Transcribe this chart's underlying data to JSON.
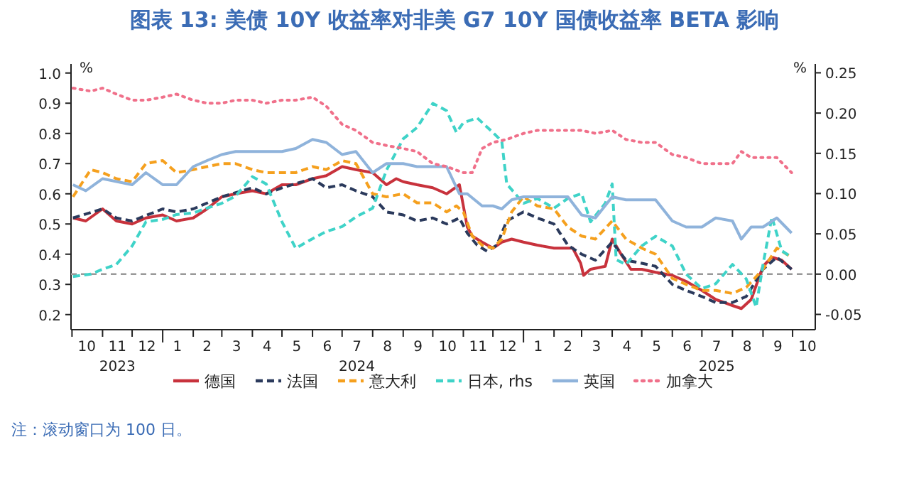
{
  "chart_data": {
    "type": "line",
    "title": "图表 13: 美债 10Y 收益率对非美 G7 10Y 国债收益率 BETA 影响",
    "ylabel": "%",
    "y2label": "%",
    "xlim": [
      "2023-09-30",
      "2025-10-24"
    ],
    "ylim": [
      0.15,
      1.03
    ],
    "yticks": [
      0.2,
      0.3,
      0.4,
      0.5,
      0.6,
      0.7,
      0.8,
      0.9,
      {
        "value": 1,
        "label": "1.0"
      }
    ],
    "y2lim": [
      -0.069,
      0.261
    ],
    "y2ticks": [
      {
        "value": -0.05,
        "label": "-0.05"
      },
      {
        "value": 0,
        "label": "0.00"
      },
      {
        "value": 0.05,
        "label": "0.05"
      },
      {
        "value": 0.1,
        "label": "0.10"
      },
      {
        "value": 0.15,
        "label": "0.15"
      },
      {
        "value": 0.2,
        "label": "0.20"
      },
      {
        "value": 0.25,
        "label": "0.25"
      }
    ],
    "xticks": [
      {
        "value": "2023-10-16",
        "label": "10"
      },
      {
        "value": "2023-11-16",
        "label": "11\n2023"
      },
      {
        "value": "2023-12-16",
        "label": "12"
      },
      {
        "value": "2024-01-16",
        "label": "1"
      },
      {
        "value": "2024-02-15",
        "label": "2"
      },
      {
        "value": "2024-03-16",
        "label": "3"
      },
      {
        "value": "2024-04-16",
        "label": "4"
      },
      {
        "value": "2024-05-16",
        "label": "5"
      },
      {
        "value": "2024-06-16",
        "label": "6"
      },
      {
        "value": "2024-07-16",
        "label": "7\n2024"
      },
      {
        "value": "2024-08-16",
        "label": "8"
      },
      {
        "value": "2024-09-16",
        "label": "9"
      },
      {
        "value": "2024-10-16",
        "label": "10"
      },
      {
        "value": "2024-11-16",
        "label": "11"
      },
      {
        "value": "2024-12-16",
        "label": "12"
      },
      {
        "value": "2025-01-16",
        "label": "1"
      },
      {
        "value": "2025-02-15",
        "label": "2"
      },
      {
        "value": "2025-03-16",
        "label": "3"
      },
      {
        "value": "2025-04-16",
        "label": "4"
      },
      {
        "value": "2025-05-16",
        "label": "5"
      },
      {
        "value": "2025-06-16",
        "label": "6"
      },
      {
        "value": "2025-07-16",
        "label": "7\n2025"
      },
      {
        "value": "2025-08-16",
        "label": "8"
      },
      {
        "value": "2025-09-16",
        "label": "9"
      },
      {
        "value": "2025-10-16",
        "label": "10"
      }
    ],
    "grid": false,
    "legend": "bottom",
    "ref_lines": [
      {
        "axis": "y2",
        "value": 0,
        "label": null,
        "color": "#999999",
        "line_style": "dashed"
      }
    ],
    "annotations": [
      "注：滚动窗口为 100 日。"
    ],
    "series": [
      {
        "name": "德国",
        "color": "#c8323c",
        "line_style": "solid",
        "x": [
          "2023-10-02",
          "2023-10-15",
          "2023-11-01",
          "2023-11-15",
          "2023-12-01",
          "2023-12-15",
          "2024-01-01",
          "2024-01-15",
          "2024-02-01",
          "2024-02-15",
          "2024-03-01",
          "2024-03-15",
          "2024-04-01",
          "2024-04-15",
          "2024-05-01",
          "2024-05-15",
          "2024-06-01",
          "2024-06-15",
          "2024-07-01",
          "2024-07-15",
          "2024-08-01",
          "2024-08-15",
          "2024-08-25",
          "2024-09-01",
          "2024-09-15",
          "2024-10-01",
          "2024-10-15",
          "2024-10-28",
          "2024-11-05",
          "2024-11-10",
          "2024-11-20",
          "2024-12-01",
          "2024-12-10",
          "2024-12-20",
          "2025-01-01",
          "2025-01-15",
          "2025-02-01",
          "2025-02-20",
          "2025-02-28",
          "2025-03-03",
          "2025-03-10",
          "2025-03-25",
          "2025-04-01",
          "2025-04-10",
          "2025-04-20",
          "2025-05-01",
          "2025-05-15",
          "2025-06-01",
          "2025-06-15",
          "2025-07-01",
          "2025-07-15",
          "2025-08-01",
          "2025-08-10",
          "2025-08-20",
          "2025-09-01",
          "2025-09-10",
          "2025-09-20",
          "2025-09-30"
        ],
        "values": [
          0.52,
          0.51,
          0.55,
          0.51,
          0.5,
          0.52,
          0.53,
          0.51,
          0.52,
          0.55,
          0.59,
          0.6,
          0.61,
          0.6,
          0.63,
          0.63,
          0.65,
          0.66,
          0.69,
          0.68,
          0.67,
          0.63,
          0.65,
          0.64,
          0.63,
          0.62,
          0.6,
          0.63,
          0.49,
          0.46,
          0.44,
          0.42,
          0.44,
          0.45,
          0.44,
          0.43,
          0.42,
          0.42,
          0.37,
          0.33,
          0.35,
          0.36,
          0.45,
          0.4,
          0.35,
          0.35,
          0.34,
          0.33,
          0.31,
          0.28,
          0.25,
          0.23,
          0.22,
          0.25,
          0.36,
          0.39,
          0.38,
          0.35
        ]
      },
      {
        "name": "法国",
        "color": "#2b3a5c",
        "line_style": "dashed",
        "x": [
          "2023-10-02",
          "2023-11-01",
          "2023-11-15",
          "2023-12-01",
          "2024-01-01",
          "2024-01-15",
          "2024-02-01",
          "2024-03-01",
          "2024-04-01",
          "2024-04-15",
          "2024-05-01",
          "2024-06-01",
          "2024-06-15",
          "2024-07-01",
          "2024-07-15",
          "2024-08-01",
          "2024-08-15",
          "2024-09-01",
          "2024-09-15",
          "2024-10-01",
          "2024-10-15",
          "2024-10-28",
          "2024-11-05",
          "2024-11-15",
          "2024-11-25",
          "2024-12-05",
          "2024-12-15",
          "2025-01-01",
          "2025-01-15",
          "2025-02-01",
          "2025-02-15",
          "2025-03-01",
          "2025-03-15",
          "2025-04-01",
          "2025-04-15",
          "2025-05-01",
          "2025-05-15",
          "2025-06-01",
          "2025-06-15",
          "2025-07-01",
          "2025-07-15",
          "2025-08-01",
          "2025-08-15",
          "2025-09-01",
          "2025-09-15",
          "2025-09-30"
        ],
        "values": [
          0.52,
          0.55,
          0.52,
          0.51,
          0.55,
          0.54,
          0.55,
          0.59,
          0.62,
          0.6,
          0.62,
          0.65,
          0.62,
          0.63,
          0.61,
          0.59,
          0.54,
          0.53,
          0.51,
          0.52,
          0.5,
          0.52,
          0.47,
          0.43,
          0.41,
          0.43,
          0.51,
          0.54,
          0.52,
          0.5,
          0.43,
          0.4,
          0.38,
          0.44,
          0.38,
          0.37,
          0.36,
          0.3,
          0.28,
          0.26,
          0.24,
          0.24,
          0.26,
          0.35,
          0.39,
          0.35
        ]
      },
      {
        "name": "意大利",
        "color": "#f5a01e",
        "line_style": "dashed",
        "x": [
          "2023-10-02",
          "2023-10-20",
          "2023-11-01",
          "2023-11-15",
          "2023-12-01",
          "2023-12-15",
          "2024-01-01",
          "2024-01-15",
          "2024-02-01",
          "2024-02-15",
          "2024-03-01",
          "2024-03-15",
          "2024-04-01",
          "2024-04-15",
          "2024-05-01",
          "2024-05-15",
          "2024-06-01",
          "2024-06-15",
          "2024-07-01",
          "2024-07-15",
          "2024-08-01",
          "2024-08-15",
          "2024-09-01",
          "2024-09-15",
          "2024-10-01",
          "2024-10-15",
          "2024-10-25",
          "2024-11-01",
          "2024-11-10",
          "2024-11-20",
          "2024-12-01",
          "2024-12-10",
          "2024-12-20",
          "2025-01-01",
          "2025-01-15",
          "2025-02-01",
          "2025-02-15",
          "2025-03-01",
          "2025-03-15",
          "2025-04-01",
          "2025-04-15",
          "2025-05-01",
          "2025-05-15",
          "2025-06-01",
          "2025-06-15",
          "2025-07-01",
          "2025-07-15",
          "2025-08-01",
          "2025-08-15",
          "2025-09-01",
          "2025-09-15",
          "2025-09-25",
          "2025-09-30"
        ],
        "values": [
          0.59,
          0.68,
          0.67,
          0.65,
          0.64,
          0.7,
          0.71,
          0.67,
          0.68,
          0.69,
          0.7,
          0.7,
          0.68,
          0.67,
          0.67,
          0.67,
          0.69,
          0.68,
          0.71,
          0.7,
          0.6,
          0.59,
          0.6,
          0.57,
          0.57,
          0.54,
          0.56,
          0.54,
          0.46,
          0.43,
          0.42,
          0.45,
          0.54,
          0.59,
          0.56,
          0.55,
          0.49,
          0.46,
          0.45,
          0.51,
          0.45,
          0.42,
          0.4,
          0.32,
          0.3,
          0.28,
          0.28,
          0.27,
          0.29,
          0.35,
          0.42,
          0.4,
          0.39
        ]
      },
      {
        "name": "日本, rhs",
        "color": "#3fd3c8",
        "line_style": "dashed",
        "axis": "y2",
        "x": [
          "2023-10-02",
          "2023-10-20",
          "2023-11-01",
          "2023-11-15",
          "2023-12-01",
          "2023-12-15",
          "2024-01-01",
          "2024-01-15",
          "2024-02-01",
          "2024-02-15",
          "2024-03-01",
          "2024-03-15",
          "2024-04-01",
          "2024-04-15",
          "2024-05-01",
          "2024-05-15",
          "2024-06-01",
          "2024-06-15",
          "2024-07-01",
          "2024-07-15",
          "2024-08-01",
          "2024-08-15",
          "2024-09-01",
          "2024-09-15",
          "2024-10-01",
          "2024-10-15",
          "2024-10-25",
          "2024-11-01",
          "2024-11-15",
          "2024-12-01",
          "2024-12-10",
          "2024-12-15",
          "2025-01-01",
          "2025-01-15",
          "2025-02-01",
          "2025-02-15",
          "2025-03-01",
          "2025-03-10",
          "2025-03-25",
          "2025-04-01",
          "2025-04-05",
          "2025-04-15",
          "2025-05-01",
          "2025-05-15",
          "2025-06-01",
          "2025-06-15",
          "2025-07-01",
          "2025-07-15",
          "2025-08-01",
          "2025-08-15",
          "2025-08-25",
          "2025-09-01",
          "2025-09-10",
          "2025-09-20",
          "2025-09-30"
        ],
        "values": [
          -0.003,
          0.0,
          0.006,
          0.012,
          0.035,
          0.065,
          0.068,
          0.074,
          0.076,
          0.082,
          0.088,
          0.097,
          0.121,
          0.112,
          0.065,
          0.032,
          0.044,
          0.053,
          0.059,
          0.071,
          0.082,
          0.129,
          0.168,
          0.182,
          0.212,
          0.203,
          0.176,
          0.188,
          0.194,
          0.176,
          0.165,
          0.112,
          0.088,
          0.094,
          0.082,
          0.094,
          0.1,
          0.065,
          0.088,
          0.112,
          0.018,
          0.012,
          0.035,
          0.047,
          0.035,
          0.0,
          -0.018,
          -0.012,
          0.012,
          -0.006,
          -0.041,
          0.012,
          0.071,
          0.029,
          0.021
        ]
      },
      {
        "name": "英国",
        "color": "#8fb3db",
        "line_style": "solid",
        "x": [
          "2023-10-02",
          "2023-10-15",
          "2023-11-01",
          "2023-12-01",
          "2023-12-15",
          "2024-01-01",
          "2024-01-15",
          "2024-02-01",
          "2024-02-15",
          "2024-03-01",
          "2024-03-15",
          "2024-04-01",
          "2024-04-15",
          "2024-05-01",
          "2024-05-15",
          "2024-06-01",
          "2024-06-15",
          "2024-07-01",
          "2024-07-15",
          "2024-08-01",
          "2024-08-15",
          "2024-09-01",
          "2024-09-15",
          "2024-10-01",
          "2024-10-15",
          "2024-10-28",
          "2024-11-05",
          "2024-11-20",
          "2024-12-01",
          "2024-12-10",
          "2024-12-20",
          "2025-01-01",
          "2025-01-15",
          "2025-02-01",
          "2025-02-15",
          "2025-03-01",
          "2025-03-15",
          "2025-04-01",
          "2025-04-15",
          "2025-05-01",
          "2025-05-15",
          "2025-06-01",
          "2025-06-15",
          "2025-07-01",
          "2025-07-15",
          "2025-08-01",
          "2025-08-10",
          "2025-08-20",
          "2025-09-01",
          "2025-09-15",
          "2025-09-30"
        ],
        "values": [
          0.63,
          0.61,
          0.65,
          0.63,
          0.67,
          0.63,
          0.63,
          0.69,
          0.71,
          0.73,
          0.74,
          0.74,
          0.74,
          0.74,
          0.75,
          0.78,
          0.77,
          0.73,
          0.74,
          0.67,
          0.7,
          0.7,
          0.69,
          0.69,
          0.69,
          0.6,
          0.6,
          0.56,
          0.56,
          0.55,
          0.58,
          0.59,
          0.59,
          0.59,
          0.59,
          0.53,
          0.52,
          0.59,
          0.58,
          0.58,
          0.58,
          0.51,
          0.49,
          0.49,
          0.52,
          0.51,
          0.45,
          0.49,
          0.49,
          0.52,
          0.47
        ]
      },
      {
        "name": "加拿大",
        "color": "#f0708a",
        "line_style": "dotted",
        "x": [
          "2023-10-02",
          "2023-10-20",
          "2023-11-01",
          "2023-11-15",
          "2023-12-01",
          "2023-12-15",
          "2024-01-01",
          "2024-01-15",
          "2024-02-01",
          "2024-02-15",
          "2024-03-01",
          "2024-03-15",
          "2024-04-01",
          "2024-04-15",
          "2024-05-01",
          "2024-05-15",
          "2024-06-01",
          "2024-06-15",
          "2024-07-01",
          "2024-07-15",
          "2024-08-01",
          "2024-08-15",
          "2024-09-01",
          "2024-09-15",
          "2024-10-01",
          "2024-10-15",
          "2024-11-01",
          "2024-11-10",
          "2024-11-20",
          "2024-12-01",
          "2024-12-15",
          "2025-01-01",
          "2025-01-15",
          "2025-02-01",
          "2025-02-15",
          "2025-03-01",
          "2025-03-15",
          "2025-04-01",
          "2025-04-15",
          "2025-05-01",
          "2025-05-15",
          "2025-06-01",
          "2025-06-15",
          "2025-07-01",
          "2025-07-15",
          "2025-08-01",
          "2025-08-10",
          "2025-08-20",
          "2025-09-01",
          "2025-09-15",
          "2025-09-30"
        ],
        "values": [
          0.95,
          0.94,
          0.95,
          0.93,
          0.91,
          0.91,
          0.92,
          0.93,
          0.91,
          0.9,
          0.9,
          0.91,
          0.91,
          0.9,
          0.91,
          0.91,
          0.92,
          0.89,
          0.83,
          0.81,
          0.77,
          0.76,
          0.75,
          0.74,
          0.7,
          0.69,
          0.67,
          0.67,
          0.75,
          0.77,
          0.78,
          0.8,
          0.81,
          0.81,
          0.81,
          0.81,
          0.8,
          0.81,
          0.78,
          0.77,
          0.77,
          0.73,
          0.72,
          0.7,
          0.7,
          0.7,
          0.74,
          0.72,
          0.72,
          0.72,
          0.67
        ]
      }
    ]
  }
}
